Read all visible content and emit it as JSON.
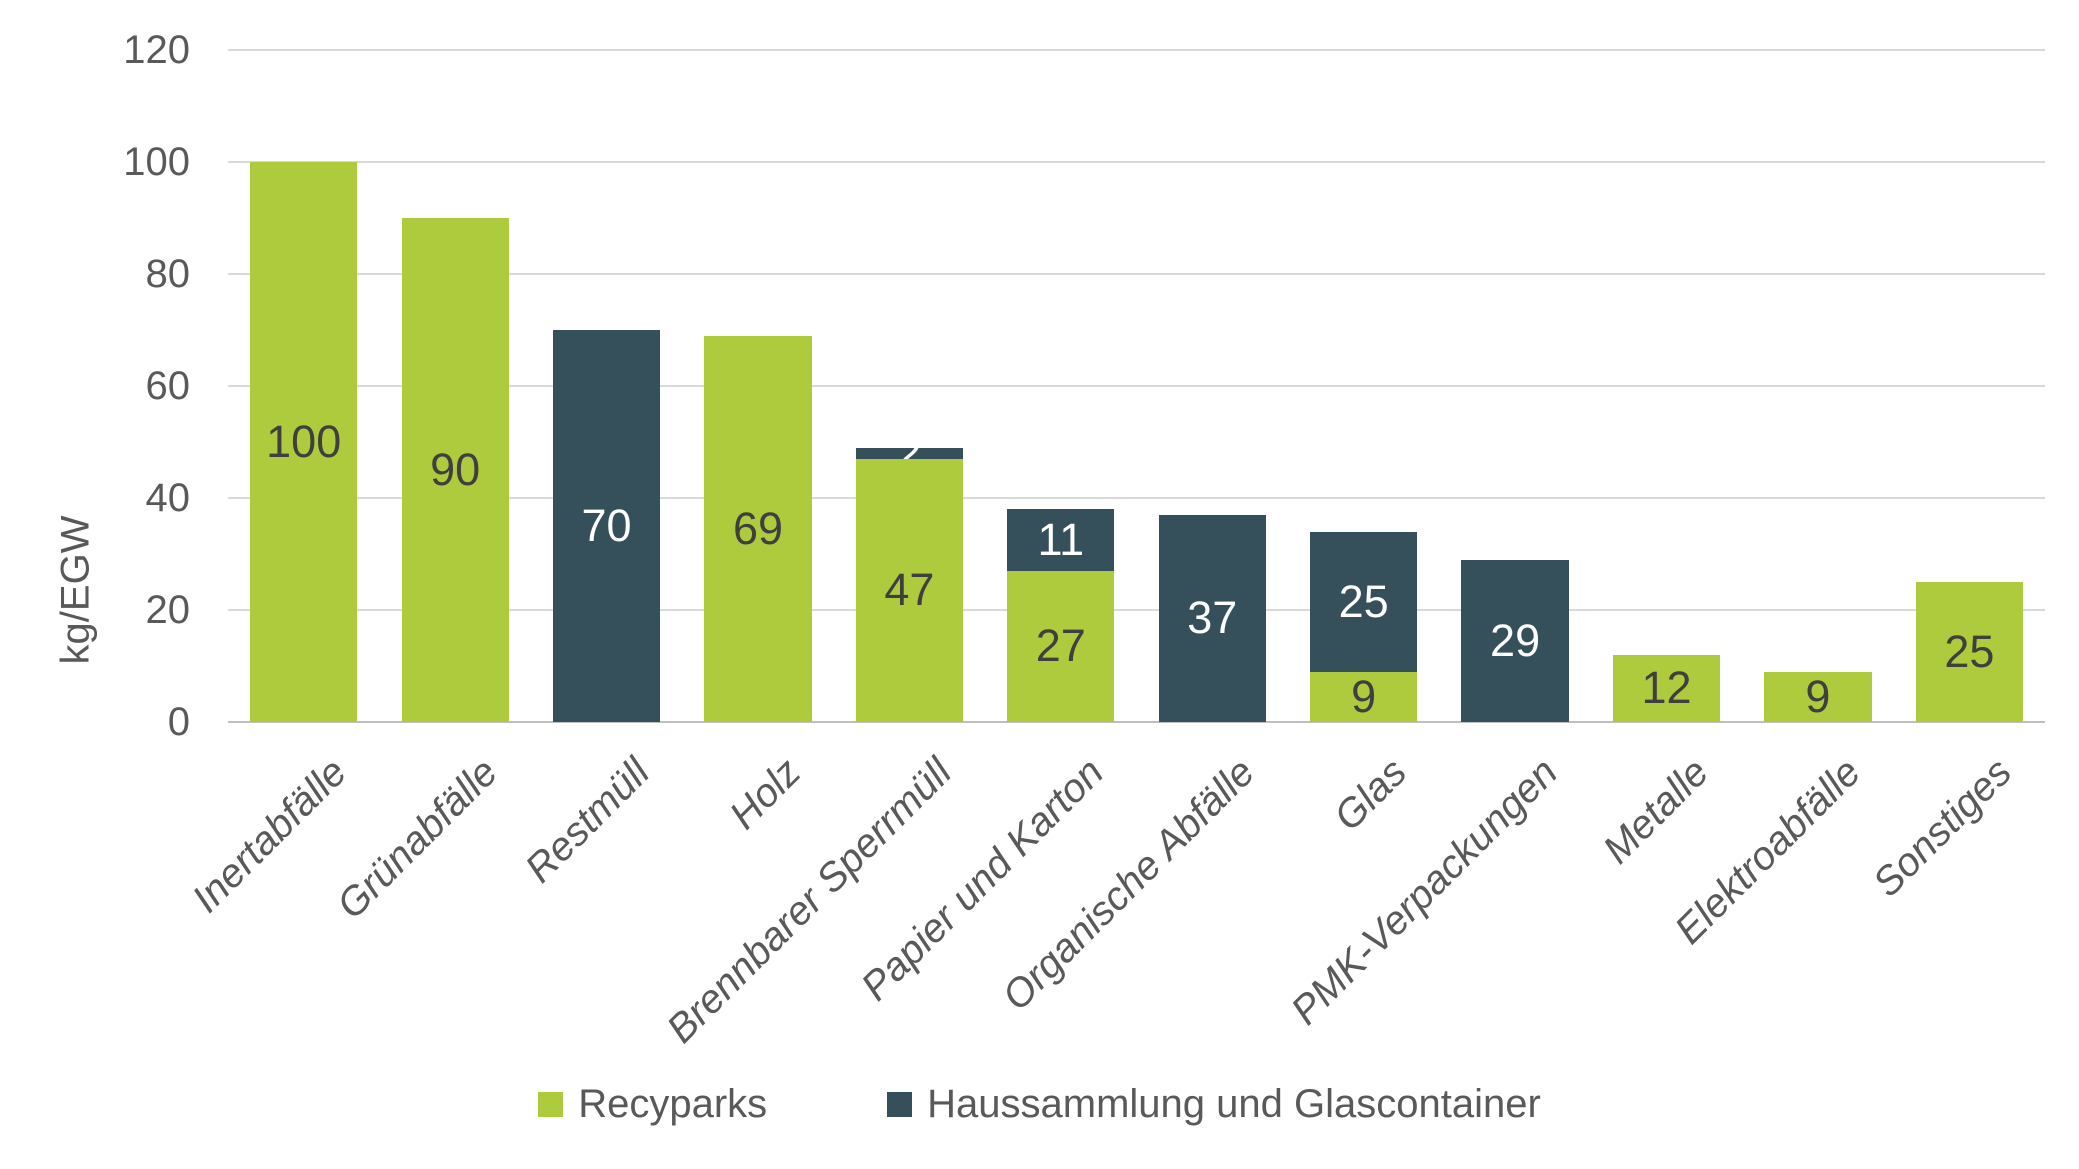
{
  "chart_data": {
    "type": "bar",
    "stacked": true,
    "title": "",
    "xlabel": "",
    "ylabel": "kg/EGW",
    "ylim": [
      0,
      120
    ],
    "yticks": [
      0,
      20,
      40,
      60,
      80,
      100,
      120
    ],
    "grid": true,
    "legend_position": "bottom-center",
    "categories": [
      "Inertabfälle",
      "Grünabfälle",
      "Restmüll",
      "Holz",
      "Brennbarer Sperrmüll",
      "Papier und Karton",
      "Organische Abfälle",
      "Glas",
      "PMK-Verpackungen",
      "Metalle",
      "Elektroabfälle",
      "Sonstiges"
    ],
    "series": [
      {
        "name": "Recyparks",
        "color": "#AECB3D",
        "label_color": "#3F3F3F",
        "values": [
          100,
          90,
          0,
          69,
          47,
          27,
          0,
          9,
          0,
          12,
          9,
          25
        ]
      },
      {
        "name": "Haussammlung und Glascontainer",
        "color": "#35505A",
        "label_color": "#FFFFFF",
        "values": [
          0,
          0,
          70,
          0,
          2,
          11,
          37,
          25,
          29,
          0,
          0,
          0
        ]
      }
    ]
  },
  "colors": {
    "gridline": "#D9D9D9",
    "axis_line": "#BFBFBF",
    "axis_text": "#595959",
    "background": "#FFFFFF"
  }
}
